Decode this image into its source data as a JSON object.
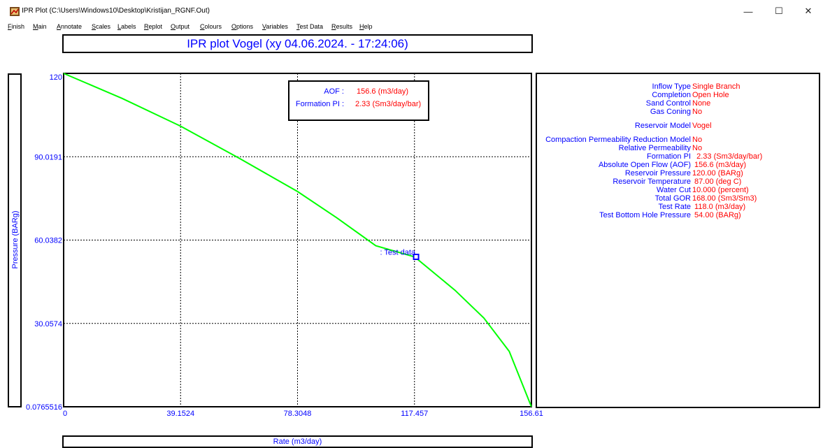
{
  "window": {
    "title": "IPR Plot (C:\\Users\\Windows10\\Desktop\\Kristijan_RGNF.Out)",
    "minimize": "—",
    "maximize": "☐",
    "close": "✕"
  },
  "menu": [
    "Finish",
    "Main",
    "Annotate",
    "Scales",
    "Labels",
    "Replot",
    "Output",
    "Colours",
    "Options",
    "Variables",
    "Test Data",
    "Results",
    "Help"
  ],
  "colors": {
    "curve": "#00ff00",
    "text_blue": "#0000ff",
    "text_red": "#ff0000"
  },
  "chart_data": {
    "type": "line",
    "title": "IPR plot  Vogel (xy 04.06.2024. - 17:24:06)",
    "xlabel": "Rate  (m3/day)",
    "ylabel": "Pressure  (BARg)",
    "xlim": [
      0,
      156.61
    ],
    "ylim": [
      0.0765516,
      120
    ],
    "xticks": [
      "0",
      "39.1524",
      "78.3048",
      "117.457",
      "156.61"
    ],
    "yticks": [
      "120",
      "90.0191",
      "60.0382",
      "30.0574",
      "0.0765516"
    ],
    "grid": true,
    "series": [
      {
        "x": [
          0,
          19.6,
          39.2,
          58.7,
          78.3,
          91.5,
          104.5,
          117.5,
          131,
          140.7,
          149.2,
          156.61
        ],
        "y": [
          120,
          111,
          101,
          89.5,
          77.5,
          68,
          58,
          54,
          42,
          32,
          20,
          0.0765516
        ]
      }
    ],
    "test_point": {
      "label": ": Test data",
      "x": 118.0,
      "y": 54.0
    },
    "annotation": {
      "aof_label": "AOF :",
      "aof_value": "156.6 (m3/day)",
      "pi_label": "Formation PI :",
      "pi_value": "2.33 (Sm3/day/bar)"
    }
  },
  "info_panel": [
    {
      "label": "Inflow Type",
      "value": "Single Branch"
    },
    {
      "label": "Completion",
      "value": "Open Hole"
    },
    {
      "label": "Sand Control",
      "value": "None"
    },
    {
      "label": "Gas Coning",
      "value": "No"
    },
    {
      "label": "Reservoir Model",
      "value": "Vogel"
    },
    {
      "label": "Compaction Permeability Reduction Model",
      "value": "No"
    },
    {
      "label": "Relative Permeability",
      "value": "No"
    },
    {
      "label": "Formation PI",
      "value": "  2.33 (Sm3/day/bar)"
    },
    {
      "label": "Absolute Open Flow (AOF)",
      "value": " 156.6 (m3/day)"
    },
    {
      "label": "Reservoir Pressure",
      "value": "120.00 (BARg)"
    },
    {
      "label": "Reservoir Temperature",
      "value": " 87.00 (deg C)"
    },
    {
      "label": "Water Cut",
      "value": "10.000 (percent)"
    },
    {
      "label": "Total GOR",
      "value": "168.00 (Sm3/Sm3)"
    },
    {
      "label": "Test Rate",
      "value": " 118.0 (m3/day)"
    },
    {
      "label": "Test Bottom Hole Pressure",
      "value": " 54.00 (BARg)"
    }
  ]
}
